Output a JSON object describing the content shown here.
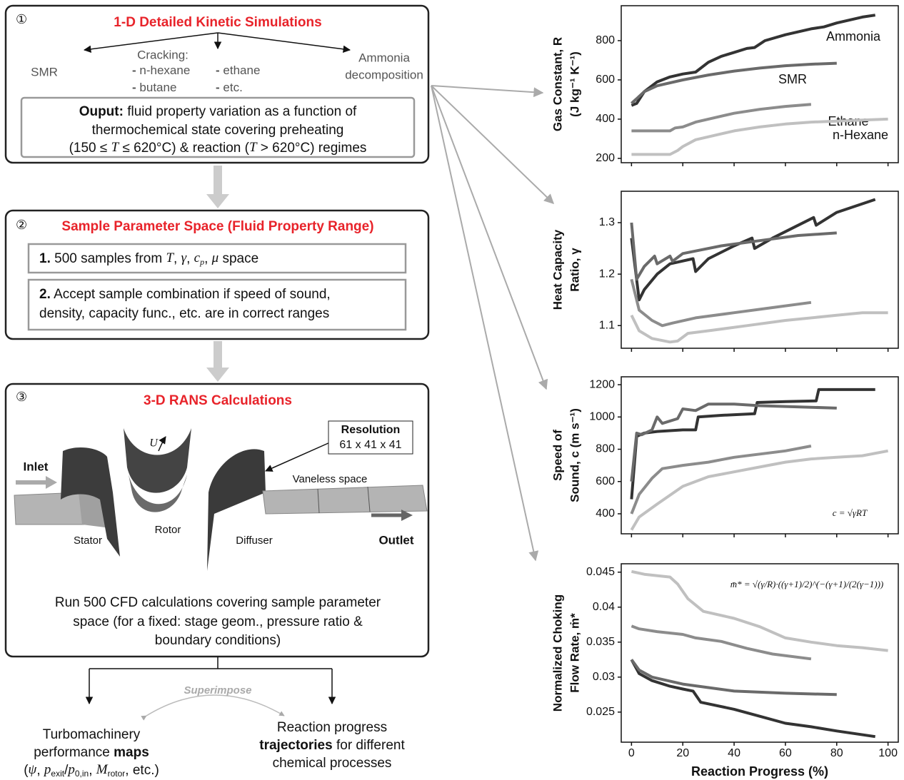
{
  "step1": {
    "number": "①",
    "title": "1-D Detailed Kinetic Simulations",
    "smr": "SMR",
    "cracking": "Cracking:",
    "bullet": "-",
    "items": [
      "n-hexane",
      "butane",
      "ethane",
      "etc."
    ],
    "ammonia": [
      "Ammonia",
      "decomposition"
    ],
    "output": {
      "bold": "Ouput:",
      "line1": " fluid property variation as a function of",
      "line2": "thermochemical state covering preheating",
      "line3": [
        "(150 ≤ ",
        "T",
        " ≤ 620°C) & reaction (",
        "T",
        " > 620°C) regimes"
      ]
    }
  },
  "step2": {
    "number": "②",
    "title": "Sample Parameter Space (Fluid Property Range)",
    "item1": [
      "1.",
      " 500 samples from ",
      "T",
      ", ",
      "γ",
      ", ",
      "c",
      "p",
      ", ",
      "μ",
      " space"
    ],
    "item2": {
      "bold": "2.",
      "line1": " Accept sample combination if speed of sound,",
      "line2": "density, capacity func., etc. are in correct ranges"
    }
  },
  "step3": {
    "number": "③",
    "title": "3-D RANS Calculations",
    "labels": {
      "inlet": "Inlet",
      "stator": "Stator",
      "rotor": "Rotor",
      "u": "U",
      "diffuser": "Diffuser",
      "vaneless": "Vaneless space",
      "outlet": "Outlet"
    },
    "resolution": {
      "title": "Resolution",
      "value": "61 x 41 x 41"
    },
    "caption": [
      "Run 500 CFD calculations covering sample parameter",
      "space (for a fixed: stage geom., pressure ratio &",
      "boundary conditions)"
    ]
  },
  "outputs": {
    "superimpose": "Superimpose",
    "maps": {
      "line1": "Turbomachinery",
      "line2": [
        "performance ",
        "maps"
      ],
      "line3": [
        "(",
        "ψ",
        ", ",
        "p",
        "exit",
        "/",
        "p",
        "0,in",
        ", ",
        "M",
        "rotor",
        ", etc.)"
      ]
    },
    "trajectories": {
      "line1": "Reaction progress",
      "line2": [
        "trajectories",
        " for different"
      ],
      "line3": "chemical processes"
    }
  },
  "chart_data": [
    {
      "type": "line",
      "ylabel": [
        "Gas Constant, R",
        "(J kg⁻¹ K⁻¹)"
      ],
      "xlim": [
        -4,
        104
      ],
      "xticks": [
        0,
        20,
        40,
        60,
        80,
        100
      ],
      "ylim": [
        178,
        978
      ],
      "yticks": [
        200,
        400,
        600,
        800
      ],
      "series": [
        {
          "name": "Ammonia",
          "color": "#333333",
          "x": [
            0,
            2,
            5,
            10,
            15,
            20,
            25,
            30,
            35,
            40,
            45,
            48,
            52,
            60,
            70,
            75,
            80,
            90,
            95
          ],
          "values": [
            470,
            480,
            540,
            590,
            615,
            630,
            640,
            690,
            720,
            740,
            760,
            765,
            800,
            830,
            860,
            870,
            890,
            920,
            930
          ]
        },
        {
          "name": "SMR",
          "color": "#6a6a6a",
          "x": [
            0,
            5,
            10,
            20,
            30,
            40,
            50,
            60,
            70,
            80
          ],
          "values": [
            480,
            540,
            570,
            600,
            625,
            645,
            660,
            672,
            680,
            685
          ]
        },
        {
          "name": "Ethane",
          "color": "#8c8c8c",
          "x": [
            0,
            15,
            17,
            20,
            25,
            30,
            40,
            50,
            60,
            70
          ],
          "values": [
            340,
            340,
            355,
            360,
            385,
            400,
            430,
            450,
            465,
            475
          ]
        },
        {
          "name": "n-Hexane",
          "color": "#c0c0c0",
          "x": [
            0,
            15,
            18,
            20,
            25,
            30,
            40,
            50,
            60,
            70,
            80,
            90,
            100
          ],
          "values": [
            220,
            220,
            240,
            260,
            295,
            310,
            340,
            360,
            375,
            385,
            390,
            395,
            400
          ]
        }
      ]
    },
    {
      "type": "line",
      "ylabel": [
        "Heat Capacity",
        "Ratio, γ"
      ],
      "xlim": [
        -4,
        104
      ],
      "xticks": [
        0,
        20,
        40,
        60,
        80,
        100
      ],
      "ylim": [
        1.056,
        1.361
      ],
      "yticks": [
        1.1,
        1.2,
        1.3
      ],
      "series": [
        {
          "color": "#333333",
          "x": [
            0,
            3,
            5,
            10,
            15,
            24,
            25,
            30,
            40,
            47,
            48,
            55,
            65,
            71,
            72,
            80,
            95
          ],
          "values": [
            1.27,
            1.15,
            1.17,
            1.2,
            1.22,
            1.23,
            1.205,
            1.23,
            1.255,
            1.27,
            1.25,
            1.27,
            1.295,
            1.31,
            1.295,
            1.32,
            1.345
          ]
        },
        {
          "color": "#6a6a6a",
          "x": [
            0,
            2,
            5,
            9,
            10,
            15,
            16,
            20,
            25,
            35,
            50,
            65,
            80
          ],
          "values": [
            1.3,
            1.19,
            1.215,
            1.235,
            1.22,
            1.235,
            1.225,
            1.24,
            1.245,
            1.255,
            1.265,
            1.275,
            1.28
          ]
        },
        {
          "color": "#8c8c8c",
          "x": [
            0,
            3,
            8,
            12,
            16,
            25,
            40,
            55,
            70
          ],
          "values": [
            1.19,
            1.13,
            1.11,
            1.1,
            1.105,
            1.115,
            1.125,
            1.135,
            1.145
          ]
        },
        {
          "color": "#c0c0c0",
          "x": [
            0,
            3,
            8,
            15,
            18,
            22,
            30,
            45,
            60,
            80,
            90,
            100
          ],
          "values": [
            1.12,
            1.09,
            1.075,
            1.068,
            1.07,
            1.085,
            1.09,
            1.1,
            1.11,
            1.12,
            1.125,
            1.125
          ]
        }
      ]
    },
    {
      "type": "line",
      "ylabel": [
        "Speed of",
        "Sound, c (m s⁻¹)"
      ],
      "annotation": "c = √γRT",
      "xlim": [
        -4,
        104
      ],
      "xticks": [
        0,
        20,
        40,
        60,
        80,
        100
      ],
      "ylim": [
        276,
        1249
      ],
      "yticks": [
        400,
        600,
        800,
        1000,
        1200
      ],
      "series": [
        {
          "color": "#333333",
          "x": [
            0,
            2,
            5,
            10,
            20,
            25,
            26,
            35,
            48,
            49,
            60,
            72,
            73,
            95
          ],
          "values": [
            490,
            880,
            900,
            910,
            920,
            920,
            1000,
            1010,
            1020,
            1090,
            1095,
            1100,
            1170,
            1170
          ]
        },
        {
          "color": "#6a6a6a",
          "x": [
            0,
            2,
            4,
            8,
            10,
            12,
            18,
            20,
            25,
            30,
            40,
            50,
            60,
            70,
            80
          ],
          "values": [
            600,
            900,
            890,
            920,
            1000,
            960,
            990,
            1050,
            1040,
            1080,
            1080,
            1070,
            1065,
            1060,
            1055
          ]
        },
        {
          "color": "#8c8c8c",
          "x": [
            0,
            3,
            8,
            12,
            20,
            30,
            40,
            50,
            60,
            70
          ],
          "values": [
            400,
            520,
            620,
            680,
            700,
            720,
            750,
            770,
            790,
            820
          ]
        },
        {
          "color": "#c0c0c0",
          "x": [
            0,
            3,
            10,
            20,
            30,
            40,
            50,
            60,
            70,
            80,
            90,
            100
          ],
          "values": [
            300,
            380,
            460,
            570,
            630,
            660,
            690,
            720,
            740,
            750,
            760,
            790
          ]
        }
      ]
    },
    {
      "type": "line",
      "ylabel": [
        "Normalized Choking",
        "Flow Rate, ṁ*"
      ],
      "annotation": "m̄* = √(γ/R)·((γ+1)/2)^(−(γ+1)/(2(γ−1)))",
      "xlabel": "Reaction Progress (%)",
      "xlim": [
        -4,
        104
      ],
      "xticks": [
        0,
        20,
        40,
        60,
        80,
        100
      ],
      "ylim": [
        0.0207,
        0.0462
      ],
      "yticks": [
        0.025,
        0.03,
        0.035,
        0.04,
        0.045
      ],
      "series": [
        {
          "color": "#333333",
          "x": [
            0,
            3,
            8,
            15,
            20,
            24,
            27,
            40,
            50,
            60,
            70,
            80,
            95
          ],
          "values": [
            0.0325,
            0.0305,
            0.0295,
            0.0287,
            0.0283,
            0.028,
            0.0264,
            0.0254,
            0.0244,
            0.0234,
            0.0229,
            0.0223,
            0.0215
          ]
        },
        {
          "color": "#6a6a6a",
          "x": [
            0,
            3,
            8,
            20,
            30,
            40,
            60,
            80
          ],
          "values": [
            0.0325,
            0.031,
            0.03,
            0.029,
            0.0285,
            0.028,
            0.0277,
            0.0275
          ]
        },
        {
          "color": "#8c8c8c",
          "x": [
            0,
            3,
            10,
            20,
            25,
            35,
            45,
            55,
            70
          ],
          "values": [
            0.0373,
            0.0369,
            0.0365,
            0.0361,
            0.0356,
            0.0351,
            0.0341,
            0.0333,
            0.0326
          ]
        },
        {
          "color": "#c0c0c0",
          "x": [
            0,
            5,
            15,
            18,
            22,
            28,
            40,
            50,
            60,
            70,
            80,
            90,
            100
          ],
          "values": [
            0.0451,
            0.0447,
            0.0443,
            0.0433,
            0.0412,
            0.0394,
            0.0384,
            0.0372,
            0.0356,
            0.035,
            0.0345,
            0.0342,
            0.0338
          ]
        }
      ]
    }
  ]
}
